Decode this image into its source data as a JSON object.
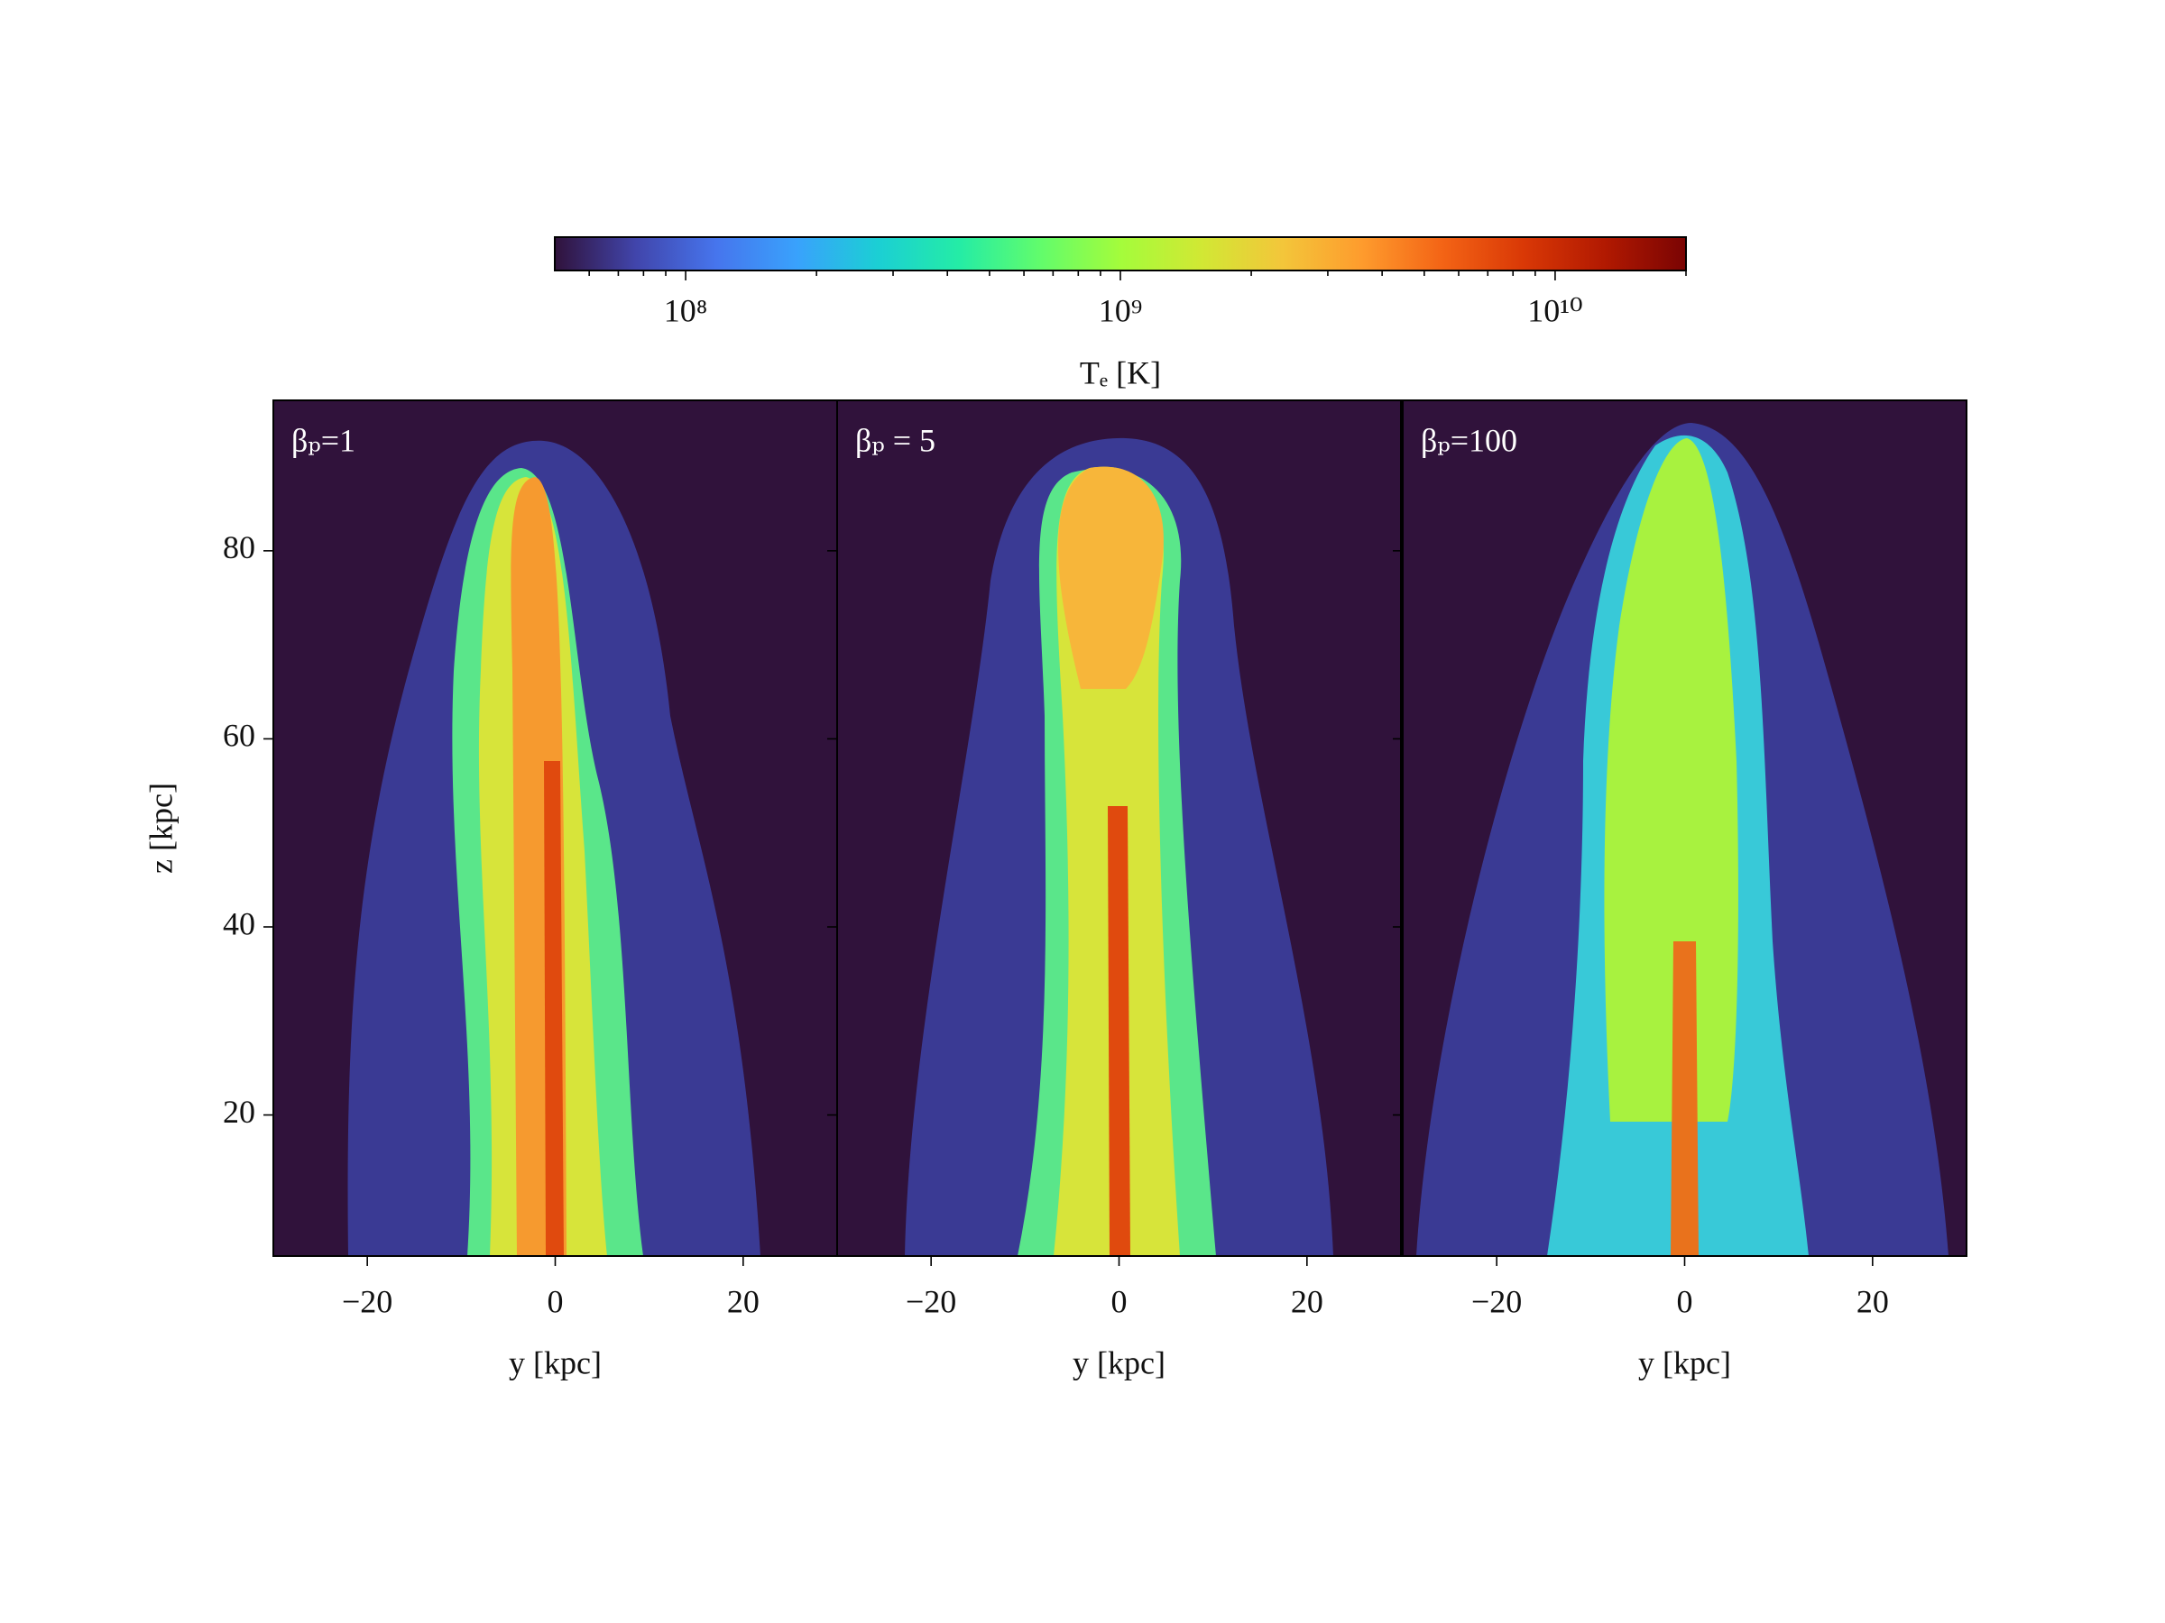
{
  "chart_data": [
    {
      "type": "colorbar",
      "label": "Tₑ [K]",
      "log": true,
      "lim": [
        50000000.0,
        20000000000.0
      ],
      "ticks": [
        {
          "value": 100000000.0,
          "label": "10⁸"
        },
        {
          "value": 1000000000.0,
          "label": "10⁹"
        },
        {
          "value": 10000000000.0,
          "label": "10¹⁰"
        }
      ],
      "minor_ticks": [
        60000000.0,
        70000000.0,
        80000000.0,
        90000000.0,
        200000000.0,
        300000000.0,
        400000000.0,
        500000000.0,
        600000000.0,
        700000000.0,
        800000000.0,
        900000000.0,
        2000000000.0,
        3000000000.0,
        4000000000.0,
        5000000000.0,
        6000000000.0,
        7000000000.0,
        8000000000.0,
        9000000000.0,
        20000000000.0
      ],
      "colors": [
        "#30123b",
        "#4145ab",
        "#4675ed",
        "#39a2fc",
        "#1bcfd4",
        "#24eca6",
        "#61fc6c",
        "#a4fc3b",
        "#d1e834",
        "#f3c63a",
        "#fe9b2d",
        "#f36315",
        "#d93806",
        "#b11901",
        "#7a0403"
      ]
    },
    {
      "type": "image",
      "annotation": "βₚ=1",
      "xlabel": "y [kpc]",
      "ylabel": "z [kpc]",
      "xlim": [
        -30,
        30
      ],
      "ylim": [
        5,
        96
      ],
      "xticks": [
        {
          "value": -20,
          "label": "−20"
        },
        0,
        20
      ],
      "yticks": [
        20,
        40,
        60,
        80
      ]
    },
    {
      "type": "image",
      "annotation": "βₚ = 5",
      "xlabel": "y [kpc]",
      "xlim": [
        -30,
        30
      ],
      "ylim": [
        5,
        96
      ],
      "xticks": [
        {
          "value": -20,
          "label": "−20"
        },
        0,
        20
      ],
      "yticks": [
        20,
        40,
        60,
        80
      ]
    },
    {
      "type": "image",
      "annotation": "βₚ=100",
      "xlabel": "y [kpc]",
      "xlim": [
        -30,
        30
      ],
      "ylim": [
        5,
        96
      ],
      "xticks": [
        {
          "value": -20,
          "label": "−20"
        },
        0,
        20
      ],
      "yticks": [
        20,
        40,
        60,
        80
      ]
    }
  ]
}
